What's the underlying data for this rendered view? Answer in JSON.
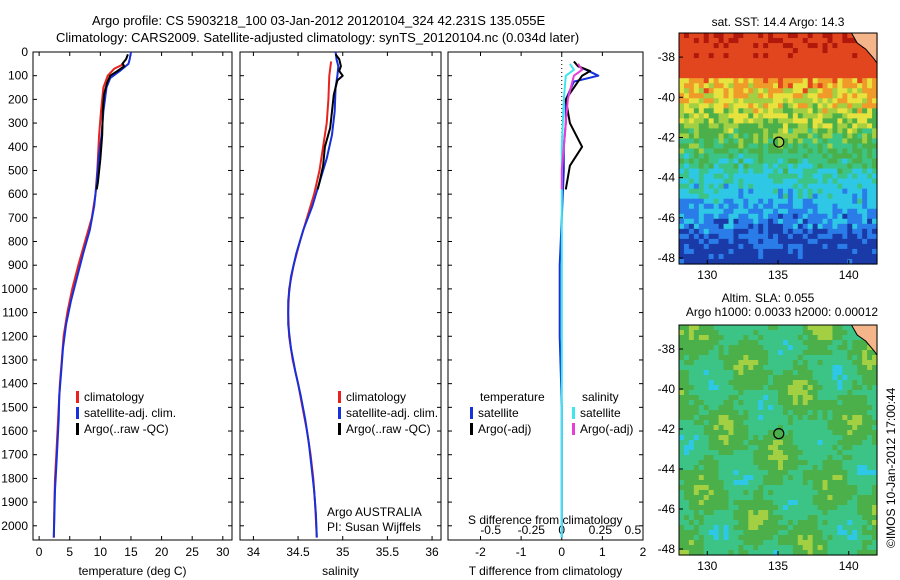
{
  "title": {
    "line1": "Argo profile: CS 5903218_100 03-Jan-2012 20120104_324 42.231S 135.055E",
    "line2": "Climatology: CARS2009. Satellite-adjusted climatology: synTS_20120104.nc (0.034d later)"
  },
  "colors": {
    "climatology": "#e8231f",
    "satellite": "#1630dc",
    "argo": "#000000",
    "sat_sal": "#3fe6ee",
    "argo_sal": "#e63fd8"
  },
  "legend_ts": {
    "climatology": "climatology",
    "satellite": "satellite-adj. clim.",
    "argo": "Argo(..raw -QC)"
  },
  "legend_diff": {
    "temp_title": "temperature",
    "sal_title": "salinity",
    "satellite": "satellite",
    "argo": "Argo(-adj)"
  },
  "sal_note": {
    "line1": "Argo AUSTRALIA",
    "line2": "PI: Susan Wijffels"
  },
  "diff_note": "S difference from climatology",
  "map1": {
    "title": "sat. SST: 14.4 Argo: 14.3"
  },
  "map2": {
    "title1": "Altim. SLA: 0.055",
    "title2": "Argo h1000: 0.0033 h2000: 0.00012"
  },
  "credit": "©IMOS 10-Jan-2012 17:00:44",
  "chart_data": [
    {
      "type": "line",
      "name": "temperature",
      "xlabel": "temperature (deg C)",
      "xlim": [
        -1,
        31.5
      ],
      "xticks": [
        0,
        5,
        10,
        15,
        20,
        25,
        30
      ],
      "ylim": [
        0,
        2060
      ],
      "yticks": [
        0,
        100,
        200,
        300,
        400,
        500,
        600,
        700,
        800,
        900,
        1000,
        1100,
        1200,
        1300,
        1400,
        1500,
        1600,
        1700,
        1800,
        1900,
        2000
      ],
      "series": [
        {
          "name": "climatology",
          "color": "#e8231f",
          "points": [
            [
              13.9,
              50
            ],
            [
              12.3,
              70
            ],
            [
              11.2,
              100
            ],
            [
              10.5,
              150
            ],
            [
              10.1,
              250
            ],
            [
              9.8,
              350
            ],
            [
              9.5,
              500
            ],
            [
              9.2,
              600
            ],
            [
              8.6,
              700
            ],
            [
              7.5,
              800
            ],
            [
              6.4,
              900
            ],
            [
              5.4,
              1000
            ],
            [
              4.6,
              1100
            ],
            [
              4.0,
              1200
            ],
            [
              3.7,
              1300
            ],
            [
              3.4,
              1400
            ],
            [
              3.2,
              1500
            ],
            [
              3.0,
              1600
            ],
            [
              2.8,
              1700
            ],
            [
              2.6,
              1800
            ],
            [
              2.5,
              1900
            ],
            [
              2.4,
              2050
            ]
          ]
        },
        {
          "name": "satellite-adj. clim.",
          "color": "#1630dc",
          "points": [
            [
              15.0,
              0
            ],
            [
              14.8,
              30
            ],
            [
              14.6,
              50
            ],
            [
              13.2,
              80
            ],
            [
              11.6,
              110
            ],
            [
              11.0,
              150
            ],
            [
              10.5,
              250
            ],
            [
              10.2,
              350
            ],
            [
              9.7,
              450
            ],
            [
              9.4,
              550
            ],
            [
              9.0,
              650
            ],
            [
              8.3,
              750
            ],
            [
              7.2,
              850
            ],
            [
              6.2,
              950
            ],
            [
              5.2,
              1050
            ],
            [
              4.4,
              1150
            ],
            [
              3.9,
              1250
            ],
            [
              3.6,
              1350
            ],
            [
              3.3,
              1450
            ],
            [
              3.2,
              1550
            ],
            [
              3.0,
              1650
            ],
            [
              2.8,
              1750
            ],
            [
              2.6,
              1850
            ],
            [
              2.5,
              1950
            ],
            [
              2.4,
              2050
            ]
          ]
        },
        {
          "name": "Argo(..raw -QC)",
          "color": "#000000",
          "points": [
            [
              14.5,
              10
            ],
            [
              14.2,
              30
            ],
            [
              13.6,
              50
            ],
            [
              13.9,
              60
            ],
            [
              12.8,
              80
            ],
            [
              11.6,
              100
            ],
            [
              11.1,
              130
            ],
            [
              10.6,
              180
            ],
            [
              10.4,
              250
            ],
            [
              10.3,
              350
            ],
            [
              10.0,
              450
            ],
            [
              9.6,
              550
            ],
            [
              9.4,
              580
            ]
          ]
        }
      ]
    },
    {
      "type": "line",
      "name": "salinity",
      "xlabel": "salinity",
      "xlim": [
        33.85,
        36.1
      ],
      "xticks": [
        34,
        34.5,
        35,
        35.5,
        36
      ],
      "ylim": [
        0,
        2060
      ],
      "series": [
        {
          "name": "climatology",
          "color": "#e8231f",
          "points": [
            [
              34.87,
              40
            ],
            [
              34.86,
              70
            ],
            [
              34.85,
              100
            ],
            [
              34.84,
              200
            ],
            [
              34.82,
              300
            ],
            [
              34.78,
              400
            ],
            [
              34.74,
              500
            ],
            [
              34.68,
              600
            ],
            [
              34.6,
              700
            ],
            [
              34.52,
              800
            ],
            [
              34.45,
              900
            ],
            [
              34.4,
              1000
            ],
            [
              34.39,
              1100
            ],
            [
              34.4,
              1200
            ],
            [
              34.44,
              1300
            ],
            [
              34.5,
              1400
            ],
            [
              34.55,
              1500
            ],
            [
              34.6,
              1600
            ],
            [
              34.64,
              1700
            ],
            [
              34.67,
              1800
            ],
            [
              34.69,
              1900
            ],
            [
              34.71,
              2050
            ]
          ]
        },
        {
          "name": "satellite-adj. clim.",
          "color": "#1630dc",
          "points": [
            [
              34.92,
              0
            ],
            [
              34.93,
              30
            ],
            [
              34.95,
              60
            ],
            [
              34.94,
              100
            ],
            [
              34.92,
              150
            ],
            [
              34.91,
              250
            ],
            [
              34.88,
              350
            ],
            [
              34.82,
              450
            ],
            [
              34.74,
              550
            ],
            [
              34.66,
              650
            ],
            [
              34.56,
              750
            ],
            [
              34.48,
              850
            ],
            [
              34.42,
              950
            ],
            [
              34.39,
              1050
            ],
            [
              34.39,
              1150
            ],
            [
              34.42,
              1250
            ],
            [
              34.47,
              1350
            ],
            [
              34.53,
              1450
            ],
            [
              34.58,
              1550
            ],
            [
              34.62,
              1650
            ],
            [
              34.65,
              1750
            ],
            [
              34.68,
              1850
            ],
            [
              34.7,
              1950
            ],
            [
              34.71,
              2050
            ]
          ]
        },
        {
          "name": "Argo(..raw -QC)",
          "color": "#000000",
          "points": [
            [
              34.92,
              10
            ],
            [
              34.96,
              30
            ],
            [
              34.98,
              60
            ],
            [
              34.96,
              80
            ],
            [
              35.0,
              100
            ],
            [
              34.94,
              120
            ],
            [
              34.9,
              180
            ],
            [
              34.88,
              250
            ],
            [
              34.86,
              320
            ],
            [
              34.8,
              400
            ],
            [
              34.78,
              480
            ],
            [
              34.74,
              550
            ],
            [
              34.72,
              580
            ]
          ]
        }
      ]
    },
    {
      "type": "line",
      "name": "difference from climatology",
      "xlabel": "T difference from climatology",
      "xlim": [
        -2.8,
        2.0
      ],
      "xticks_bottom": [
        -2,
        -1,
        0,
        1,
        2
      ],
      "xticks_top_labels": [
        "-0.5",
        "-0.25",
        "0",
        "0.25",
        "0.5"
      ],
      "series": [
        {
          "name": "temperature satellite",
          "color": "#1630dc",
          "points": [
            [
              0.4,
              60
            ],
            [
              0.6,
              75
            ],
            [
              0.9,
              100
            ],
            [
              0.3,
              125
            ],
            [
              0.1,
              200
            ],
            [
              0.1,
              300
            ],
            [
              0.05,
              400
            ],
            [
              0.05,
              500
            ],
            [
              0.0,
              700
            ],
            [
              -0.05,
              900
            ],
            [
              -0.05,
              1000
            ],
            [
              -0.05,
              1200
            ],
            [
              0.0,
              1500
            ],
            [
              0.0,
              2050
            ]
          ]
        },
        {
          "name": "temperature Argo(-adj)",
          "color": "#000000",
          "points": [
            [
              0.3,
              40
            ],
            [
              0.4,
              60
            ],
            [
              0.7,
              80
            ],
            [
              0.5,
              100
            ],
            [
              0.1,
              200
            ],
            [
              0.2,
              300
            ],
            [
              0.5,
              400
            ],
            [
              0.2,
              480
            ],
            [
              0.1,
              580
            ]
          ]
        },
        {
          "name": "salinity satellite",
          "color": "#3fe6ee",
          "points": [
            [
              0.2,
              50
            ],
            [
              0.3,
              75
            ],
            [
              0.1,
              100
            ],
            [
              0.05,
              200
            ],
            [
              0.0,
              400
            ],
            [
              0.0,
              700
            ],
            [
              0.0,
              1000
            ],
            [
              0.0,
              1500
            ],
            [
              0.0,
              2050
            ]
          ]
        },
        {
          "name": "salinity Argo(-adj)",
          "color": "#e63fd8",
          "points": [
            [
              0.4,
              50
            ],
            [
              0.5,
              75
            ],
            [
              0.3,
              100
            ],
            [
              0.15,
              200
            ],
            [
              0.1,
              300
            ],
            [
              0.05,
              400
            ],
            [
              0.0,
              500
            ],
            [
              0.0,
              580
            ]
          ]
        }
      ]
    },
    {
      "type": "heatmap",
      "name": "SST map",
      "title": "sat. SST: 14.4 Argo: 14.3",
      "xlim": [
        128,
        142
      ],
      "ylim": [
        -48.3,
        -36.8
      ],
      "xticks": [
        130,
        135,
        140
      ],
      "yticks": [
        -38,
        -40,
        -42,
        -44,
        -46,
        -48
      ],
      "marker": [
        135.055,
        -42.231
      ]
    },
    {
      "type": "heatmap",
      "name": "SLA map",
      "title": "Altim. SLA: 0.055",
      "subtitle": "Argo h1000: 0.0033 h2000: 0.00012",
      "xlim": [
        128,
        142
      ],
      "ylim": [
        -48.3,
        -36.8
      ],
      "xticks": [
        130,
        135,
        140
      ],
      "yticks": [
        -38,
        -40,
        -42,
        -44,
        -46,
        -48
      ],
      "marker": [
        135.055,
        -42.231
      ]
    }
  ]
}
